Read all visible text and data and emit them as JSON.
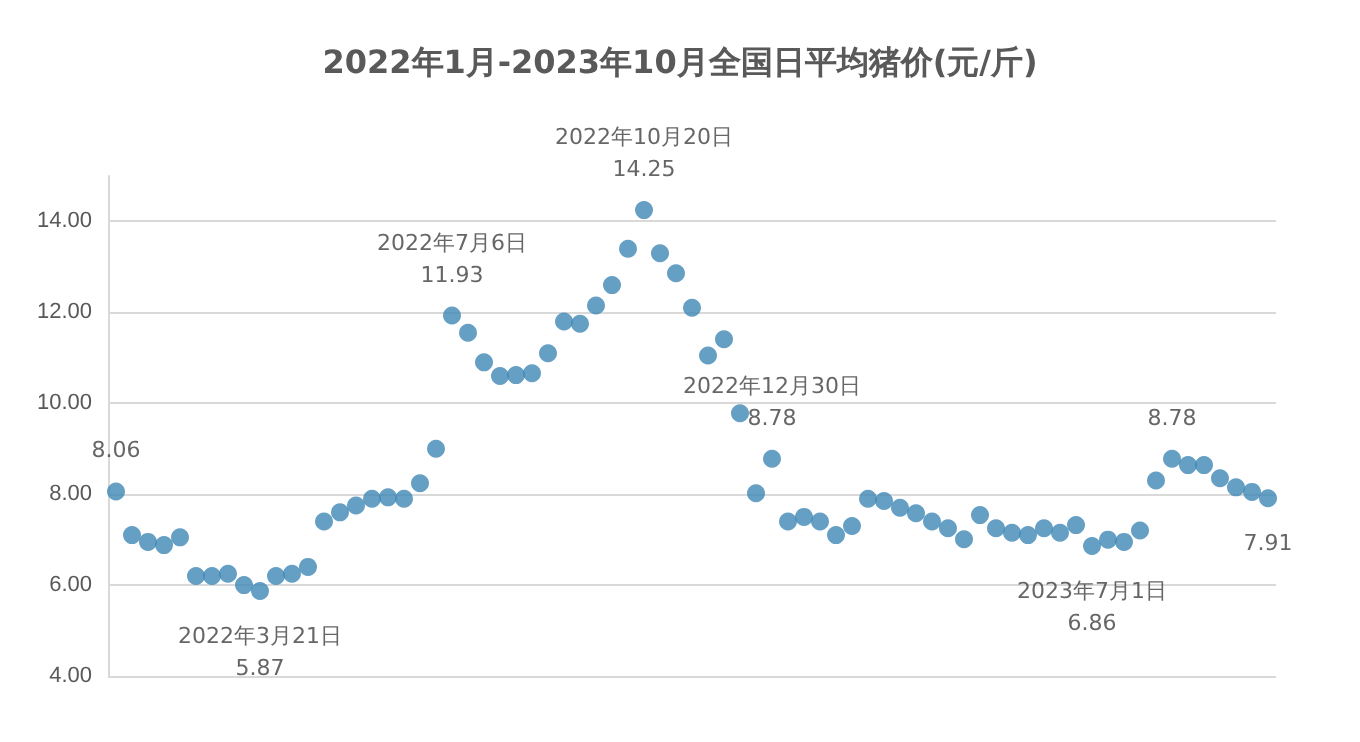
{
  "chart_data": {
    "type": "scatter",
    "title": "2022年1月-2023年10月全国日平均猪价(元/斤)",
    "categories": [
      null,
      null,
      null,
      null,
      null,
      null,
      null,
      null,
      null,
      null,
      null,
      null,
      null,
      null,
      null,
      null,
      null,
      null,
      null,
      null,
      null,
      null,
      null,
      null,
      null,
      null,
      null,
      null,
      null,
      null,
      null,
      null,
      null,
      null,
      null,
      null,
      null,
      null,
      null,
      null,
      null,
      null,
      null,
      null,
      null,
      null,
      null,
      null,
      null,
      null,
      null,
      null,
      null,
      null,
      null,
      null,
      null,
      null,
      null,
      null,
      null,
      null,
      null,
      null,
      null,
      null,
      null,
      null,
      null,
      null,
      null,
      null,
      null
    ],
    "series": [
      {
        "color": "#3f87b4",
        "values": [
          8.06,
          7.1,
          6.95,
          6.88,
          7.05,
          6.2,
          6.2,
          6.25,
          6.0,
          5.87,
          6.2,
          6.25,
          6.4,
          7.4,
          7.6,
          7.75,
          7.9,
          7.93,
          7.9,
          8.24,
          9.0,
          11.93,
          11.55,
          10.9,
          10.6,
          10.62,
          10.66,
          11.1,
          11.8,
          11.75,
          12.15,
          12.6,
          13.4,
          14.25,
          13.3,
          12.86,
          12.1,
          11.05,
          11.41,
          9.78,
          8.02,
          8.78,
          7.4,
          7.5,
          7.4,
          7.1,
          7.3,
          7.9,
          7.85,
          7.7,
          7.58,
          7.4,
          7.25,
          7.01,
          7.54,
          7.25,
          7.15,
          7.1,
          7.25,
          7.15,
          7.32,
          6.86,
          7.0,
          6.95,
          7.2,
          8.3,
          8.78,
          8.64,
          8.64,
          8.35,
          8.15,
          8.05,
          7.91
        ],
        "value_labels": [
          "8.06",
          null,
          null,
          null,
          null,
          null,
          null,
          null,
          null,
          "2022年3月21日\n5.87",
          null,
          null,
          null,
          null,
          null,
          null,
          null,
          null,
          null,
          null,
          null,
          "2022年7月6日\n11.93",
          null,
          null,
          null,
          null,
          null,
          null,
          null,
          null,
          null,
          null,
          null,
          "2022年10月20日\n14.25",
          null,
          null,
          null,
          null,
          null,
          null,
          null,
          "2022年12月30日\n8.78",
          null,
          null,
          null,
          null,
          null,
          null,
          null,
          null,
          null,
          null,
          null,
          null,
          null,
          null,
          null,
          null,
          null,
          null,
          null,
          "2023年7月1日\n6.86",
          null,
          null,
          null,
          null,
          "8.78",
          null,
          null,
          null,
          null,
          null,
          "7.91"
        ]
      }
    ],
    "ylim": [
      4,
      15
    ],
    "yticks": [
      {
        "value": 4,
        "label": "4.00"
      },
      {
        "value": 6,
        "label": "6.00"
      },
      {
        "value": 8,
        "label": "8.00"
      },
      {
        "value": 10,
        "label": "10.00"
      },
      {
        "value": 12,
        "label": "12.00"
      },
      {
        "value": 14,
        "label": "14.00"
      }
    ],
    "tick_labels": "y",
    "grid": "y",
    "marker": "circle"
  }
}
